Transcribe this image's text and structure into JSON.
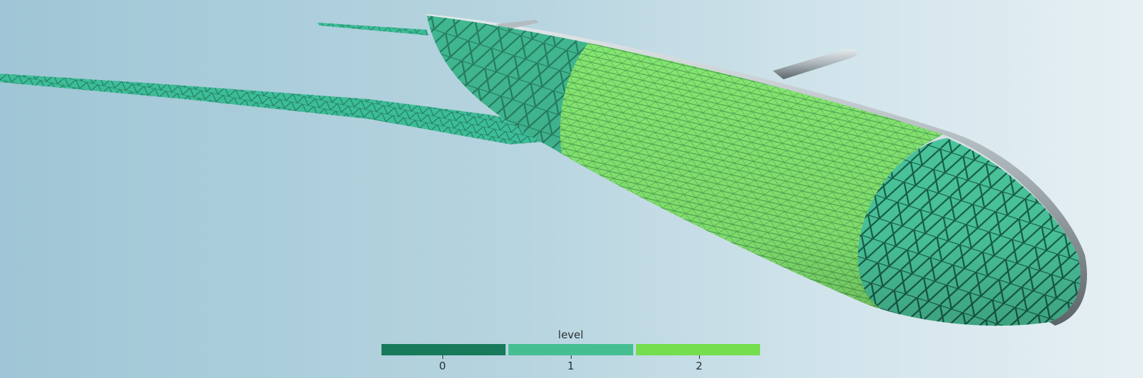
{
  "colors": {
    "level_0": "#177a5a",
    "level_1": "#45bf92",
    "level_2": "#74de4e",
    "wing_fill": "#3cbd98",
    "hull_silver": "#a9b3b7"
  },
  "legend": {
    "title": "level",
    "entries": [
      {
        "label": "0",
        "color": "#177a5a"
      },
      {
        "label": "1",
        "color": "#45bf92"
      },
      {
        "label": "2",
        "color": "#74de4e"
      }
    ]
  }
}
